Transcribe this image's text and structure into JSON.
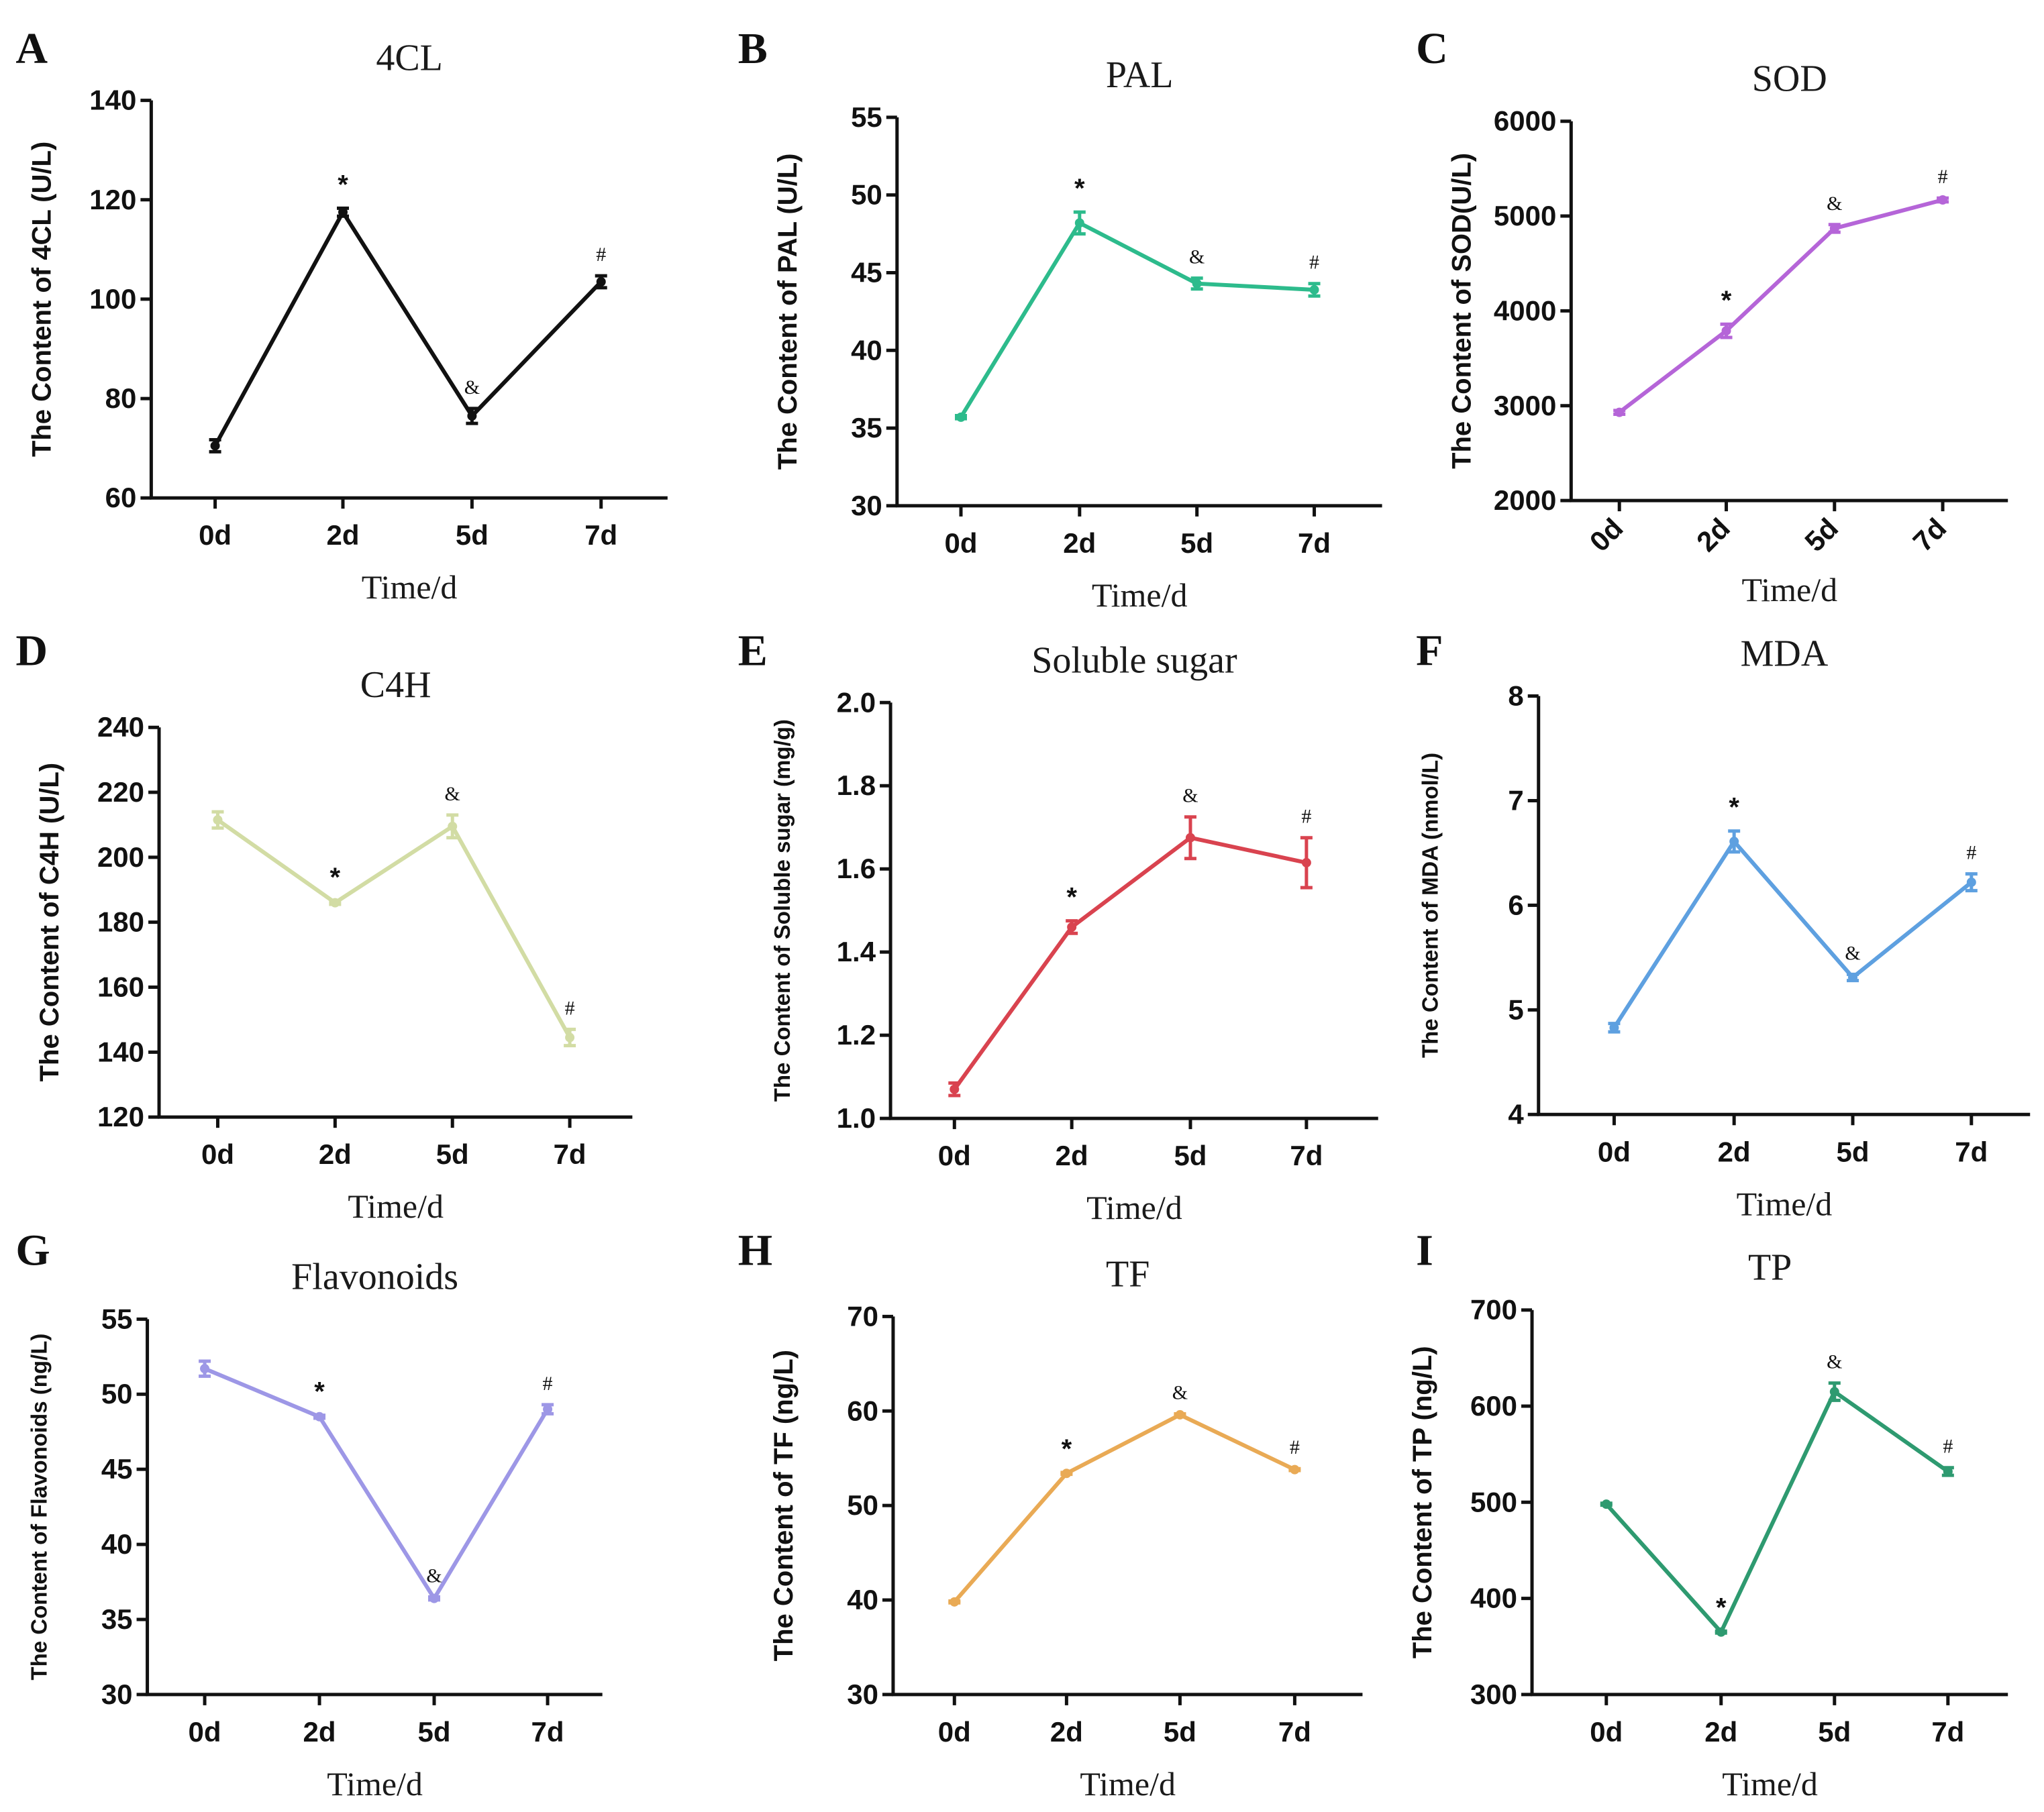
{
  "chart_data": [
    {
      "type": "line",
      "panel": "A",
      "title": "4CL",
      "xlabel": "Time/d",
      "ylabel": "The Content of 4CL (U/L)",
      "categories": [
        "0d",
        "2d",
        "5d",
        "7d"
      ],
      "series": [
        {
          "name": "4CL",
          "values": [
            70.5,
            117.5,
            76.5,
            103.5
          ],
          "errors": [
            1.2,
            0.8,
            1.5,
            1.2
          ]
        }
      ],
      "ylim": [
        60,
        140
      ],
      "yticks": [
        60,
        80,
        100,
        120,
        140
      ],
      "annotations": [
        "",
        "*",
        "&",
        "#"
      ],
      "color": "#111111",
      "grid": false,
      "rotate_xticks": false
    },
    {
      "type": "line",
      "panel": "B",
      "title": "PAL",
      "xlabel": "Time/d",
      "ylabel": "The Content of PAL (U/L)",
      "categories": [
        "0d",
        "2d",
        "5d",
        "7d"
      ],
      "series": [
        {
          "name": "PAL",
          "values": [
            35.7,
            48.2,
            44.3,
            43.9
          ],
          "errors": [
            0.1,
            0.7,
            0.35,
            0.4
          ]
        }
      ],
      "ylim": [
        30,
        55
      ],
      "yticks": [
        30,
        35,
        40,
        45,
        50,
        55
      ],
      "annotations": [
        "",
        "*",
        "&",
        "#"
      ],
      "color": "#2dbb8c",
      "grid": false,
      "rotate_xticks": false
    },
    {
      "type": "line",
      "panel": "C",
      "title": "SOD",
      "xlabel": "Time/d",
      "ylabel": "The Content of SOD(U/L)",
      "categories": [
        "0d",
        "2d",
        "5d",
        "7d"
      ],
      "series": [
        {
          "name": "SOD",
          "values": [
            2930,
            3790,
            4870,
            5170
          ],
          "errors": [
            20,
            70,
            40,
            20
          ]
        }
      ],
      "ylim": [
        2000,
        6000
      ],
      "yticks": [
        2000,
        3000,
        4000,
        5000,
        6000
      ],
      "annotations": [
        "",
        "*",
        "&",
        "#"
      ],
      "color": "#b565d8",
      "grid": false,
      "rotate_xticks": true
    },
    {
      "type": "line",
      "panel": "D",
      "title": "C4H",
      "xlabel": "Time/d",
      "ylabel": "The Content of  C4H (U/L)",
      "categories": [
        "0d",
        "2d",
        "5d",
        "7d"
      ],
      "series": [
        {
          "name": "C4H",
          "values": [
            211.5,
            186,
            209.5,
            144.5
          ],
          "errors": [
            2.5,
            0.5,
            3.5,
            2.5
          ]
        }
      ],
      "ylim": [
        120,
        240
      ],
      "yticks": [
        120,
        140,
        160,
        180,
        200,
        220,
        240
      ],
      "annotations": [
        "",
        "*",
        "&",
        "#"
      ],
      "color": "#d2dca4",
      "grid": false,
      "rotate_xticks": false
    },
    {
      "type": "line",
      "panel": "E",
      "title": "Soluble sugar",
      "xlabel": "Time/d",
      "ylabel": "The Content of  Soluble sugar (mg/g)",
      "categories": [
        "0d",
        "2d",
        "5d",
        "7d"
      ],
      "series": [
        {
          "name": "Soluble sugar",
          "values": [
            1.07,
            1.46,
            1.675,
            1.615
          ],
          "errors": [
            0.015,
            0.015,
            0.05,
            0.06
          ]
        }
      ],
      "ylim": [
        1.0,
        2.0
      ],
      "yticks": [
        1.0,
        1.2,
        1.4,
        1.6,
        1.8,
        2.0
      ],
      "annotations": [
        "",
        "*",
        "&",
        "#"
      ],
      "color": "#d9434f",
      "grid": false,
      "rotate_xticks": false
    },
    {
      "type": "line",
      "panel": "F",
      "title": "MDA",
      "xlabel": "Time/d",
      "ylabel": "The Content of MDA (nmol/L)",
      "categories": [
        "0d",
        "2d",
        "5d",
        "7d"
      ],
      "series": [
        {
          "name": "MDA",
          "values": [
            4.83,
            6.61,
            5.31,
            6.22
          ],
          "errors": [
            0.04,
            0.1,
            0.03,
            0.08
          ]
        }
      ],
      "ylim": [
        4,
        8
      ],
      "yticks": [
        4,
        5,
        6,
        7,
        8
      ],
      "annotations": [
        "",
        "*",
        "&",
        "#"
      ],
      "color": "#5ea0e0",
      "grid": false,
      "rotate_xticks": false
    },
    {
      "type": "line",
      "panel": "G",
      "title": "Flavonoids",
      "xlabel": "Time/d",
      "ylabel": "The Content of Flavonoids (ng/L)",
      "categories": [
        "0d",
        "2d",
        "5d",
        "7d"
      ],
      "series": [
        {
          "name": "Flavonoids",
          "values": [
            51.7,
            48.5,
            36.4,
            49.0
          ],
          "errors": [
            0.5,
            0.1,
            0.1,
            0.3
          ]
        }
      ],
      "ylim": [
        30,
        55
      ],
      "yticks": [
        30,
        35,
        40,
        45,
        50,
        55
      ],
      "annotations": [
        "",
        "*",
        "&",
        "#"
      ],
      "color": "#9d97e6",
      "grid": false,
      "rotate_xticks": false
    },
    {
      "type": "line",
      "panel": "H",
      "title": "TF",
      "xlabel": "Time/d",
      "ylabel": "The Content of TF (ng/L)",
      "categories": [
        "0d",
        "2d",
        "5d",
        "7d"
      ],
      "series": [
        {
          "name": "TF",
          "values": [
            39.8,
            53.4,
            59.6,
            53.8
          ],
          "errors": [
            0.1,
            0.1,
            0.1,
            0.1
          ]
        }
      ],
      "ylim": [
        30,
        70
      ],
      "yticks": [
        30,
        40,
        50,
        60,
        70
      ],
      "annotations": [
        "",
        "*",
        "&",
        "#"
      ],
      "color": "#e9aa55",
      "grid": false,
      "rotate_xticks": false
    },
    {
      "type": "line",
      "panel": "I",
      "title": "TP",
      "xlabel": "Time/d",
      "ylabel": "The Content of TP (ng/L)",
      "categories": [
        "0d",
        "2d",
        "5d",
        "7d"
      ],
      "series": [
        {
          "name": "TP",
          "values": [
            498,
            365,
            615,
            532
          ],
          "errors": [
            1,
            1,
            9,
            4
          ]
        }
      ],
      "ylim": [
        300,
        700
      ],
      "yticks": [
        300,
        400,
        500,
        600,
        700
      ],
      "annotations": [
        "",
        "*",
        "&",
        "#"
      ],
      "color": "#2e9a70",
      "grid": false,
      "rotate_xticks": false
    }
  ]
}
